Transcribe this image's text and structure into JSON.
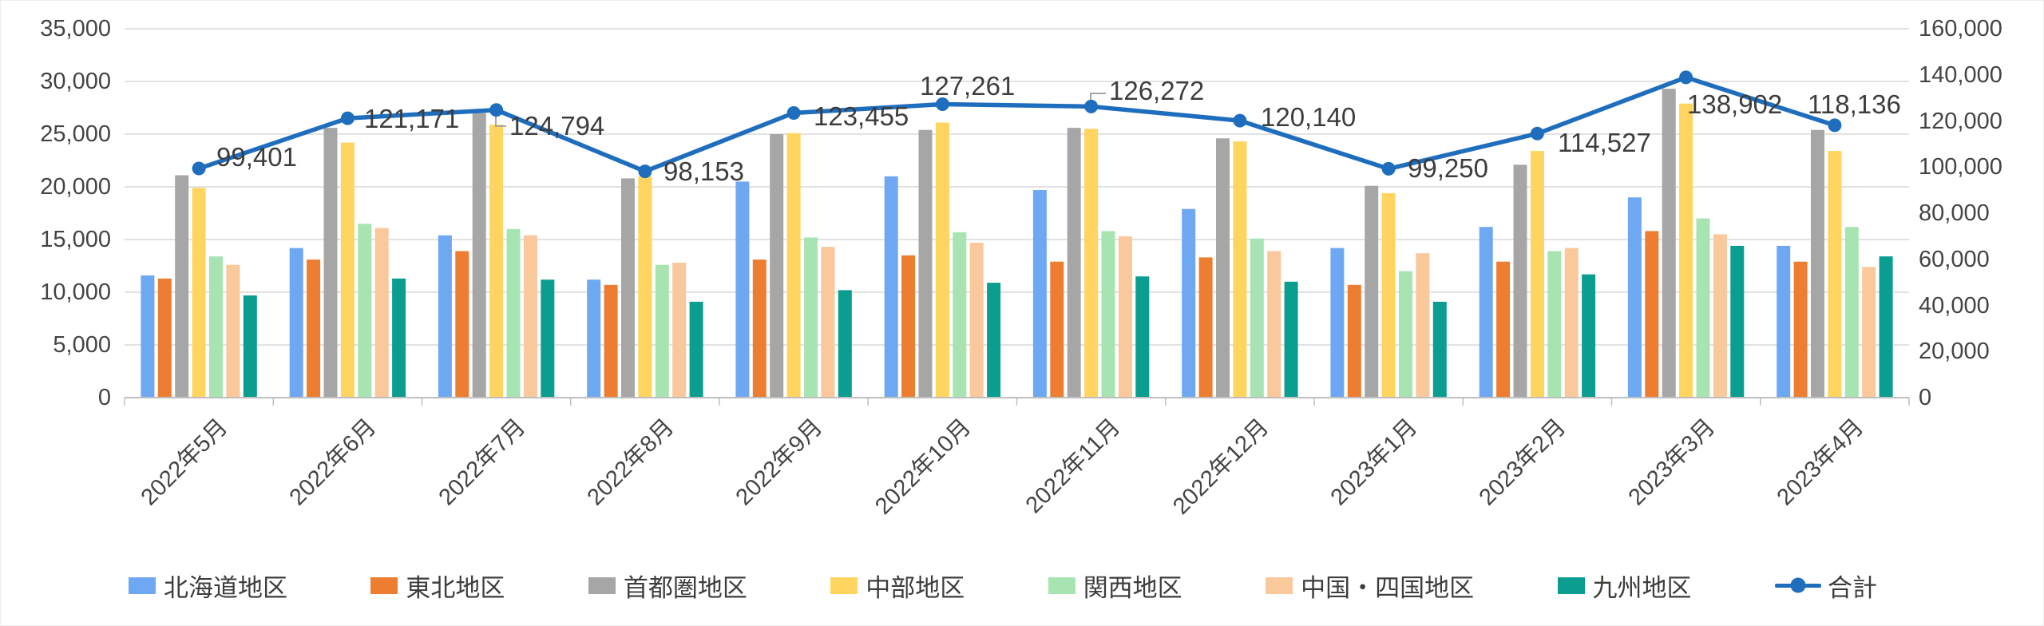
{
  "chart_data": {
    "type": "bar+line combo",
    "title": "",
    "categories": [
      "2022年5月",
      "2022年6月",
      "2022年7月",
      "2022年8月",
      "2022年9月",
      "2022年10月",
      "2022年11月",
      "2022年12月",
      "2023年1月",
      "2023年2月",
      "2023年3月",
      "2023年4月"
    ],
    "series": [
      {
        "name": "北海道地区",
        "color": "#6FA8F2",
        "values": [
          11600,
          14200,
          15400,
          11200,
          20500,
          21000,
          19700,
          17900,
          14200,
          16200,
          19000,
          14400
        ]
      },
      {
        "name": "東北地区",
        "color": "#ED7D31",
        "values": [
          11300,
          13100,
          13900,
          10700,
          13100,
          13500,
          12900,
          13300,
          10700,
          12900,
          15800,
          12900
        ]
      },
      {
        "name": "首都圏地区",
        "color": "#A6A6A6",
        "values": [
          21100,
          25600,
          27000,
          20800,
          25000,
          25400,
          25600,
          24600,
          20100,
          22100,
          29300,
          25400
        ]
      },
      {
        "name": "中部地区",
        "color": "#FFD45F",
        "values": [
          19900,
          24200,
          25900,
          21000,
          25100,
          26100,
          25500,
          24300,
          19400,
          23400,
          27900,
          23400
        ]
      },
      {
        "name": "関西地区",
        "color": "#A8E4B2",
        "values": [
          13400,
          16500,
          16000,
          12600,
          15200,
          15700,
          15800,
          15100,
          12000,
          13900,
          17000,
          16200
        ]
      },
      {
        "name": "中国・四国地区",
        "color": "#F9C89B",
        "values": [
          12600,
          16100,
          15400,
          12800,
          14300,
          14700,
          15300,
          13900,
          13700,
          14200,
          15500,
          12400
        ]
      },
      {
        "name": "九州地区",
        "color": "#0B9E90",
        "values": [
          9700,
          11300,
          11200,
          9100,
          10200,
          10900,
          11500,
          11000,
          9100,
          11700,
          14400,
          13400
        ]
      }
    ],
    "line_series": {
      "name": "合計",
      "color": "#1F6EBE",
      "values": [
        99401,
        121171,
        124794,
        98153,
        123455,
        127261,
        126272,
        120140,
        99250,
        114527,
        138902,
        118136
      ],
      "data_labels": [
        "99,401",
        "121,171",
        "124,794",
        "98,153",
        "123,455",
        "127,261",
        "126,272",
        "120,140",
        "99,250",
        "114,527",
        "138,902",
        "118,136"
      ]
    },
    "axes": {
      "left": {
        "min": 0,
        "max": 35000,
        "step": 5000,
        "ticks": [
          "0",
          "5,000",
          "10,000",
          "15,000",
          "20,000",
          "25,000",
          "30,000",
          "35,000"
        ]
      },
      "right": {
        "min": 0,
        "max": 160000,
        "step": 20000,
        "ticks": [
          "0",
          "20,000",
          "40,000",
          "60,000",
          "80,000",
          "100,000",
          "120,000",
          "140,000",
          "160,000"
        ]
      }
    },
    "grid": true,
    "legend_position": "bottom"
  }
}
